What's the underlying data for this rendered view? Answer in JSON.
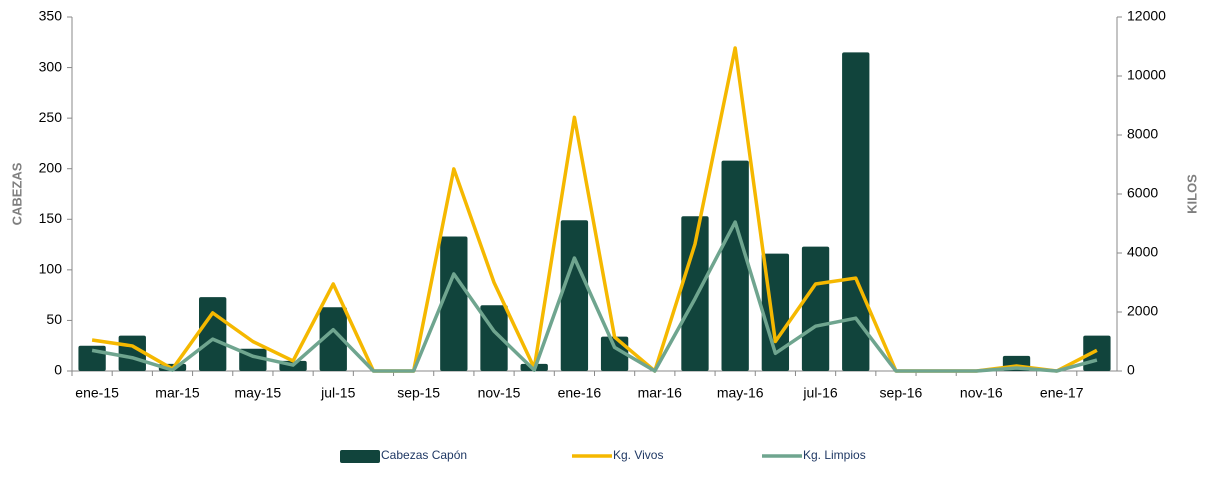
{
  "chart_data": {
    "type": "bar",
    "categories": [
      "ene-15",
      null,
      "mar-15",
      null,
      "may-15",
      null,
      "jul-15",
      null,
      "sep-15",
      null,
      "nov-15",
      null,
      "ene-16",
      null,
      "mar-16",
      null,
      "may-16",
      null,
      "jul-16",
      null,
      "sep-16",
      null,
      "nov-16",
      null,
      "ene-17",
      null
    ],
    "series": [
      {
        "name": "Cabezas Capón",
        "type": "bar",
        "color": "#11443c",
        "values": [
          25,
          35,
          7,
          73,
          22,
          10,
          63,
          0,
          0,
          133,
          65,
          7,
          149,
          34,
          0,
          153,
          208,
          116,
          123,
          315,
          0,
          0,
          0,
          15,
          0,
          35
        ]
      },
      {
        "name": "Kg. Vivos",
        "type": "line",
        "axis": "y2",
        "color": "#f5b800",
        "values": [
          1050,
          850,
          70,
          1970,
          1000,
          340,
          2950,
          0,
          0,
          6850,
          3000,
          100,
          8600,
          1150,
          0,
          4300,
          10950,
          1000,
          2950,
          3150,
          0,
          0,
          0,
          170,
          0,
          700
        ]
      },
      {
        "name": "Kg. Limpios",
        "type": "line",
        "axis": "y2",
        "color": "#6fa58f",
        "values": [
          700,
          450,
          30,
          1080,
          500,
          200,
          1400,
          0,
          0,
          3290,
          1350,
          30,
          3830,
          800,
          0,
          2450,
          5050,
          600,
          1520,
          1790,
          0,
          0,
          0,
          100,
          0,
          370
        ]
      }
    ],
    "ylabel": "CABEZAS",
    "y2label": "KILOS",
    "ylim": [
      0,
      350
    ],
    "yticks": [
      0,
      50,
      100,
      150,
      200,
      250,
      300,
      350
    ],
    "y2lim": [
      0,
      12000
    ],
    "y2ticks": [
      0,
      2000,
      4000,
      6000,
      8000,
      10000,
      12000
    ],
    "grid": false,
    "legend": "bottom"
  }
}
